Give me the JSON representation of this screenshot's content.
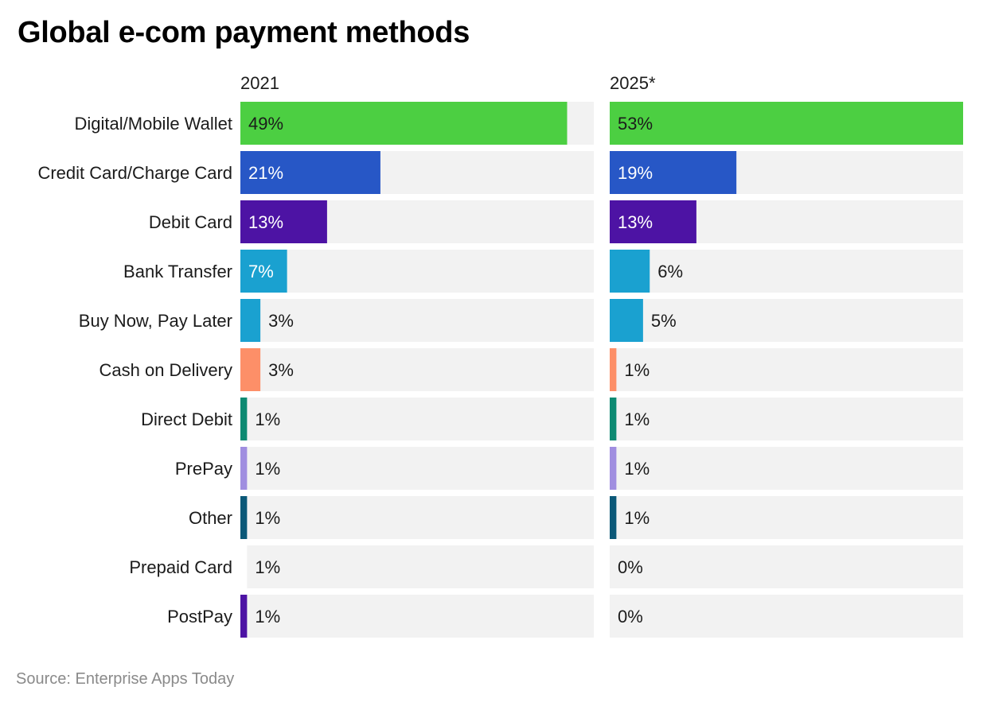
{
  "title": "Global e-com payment methods",
  "source": "Source: Enterprise Apps Today",
  "chart_data": {
    "type": "bar",
    "orientation": "horizontal",
    "layout": "small-multiples",
    "categories": [
      "Digital/Mobile Wallet",
      "Credit Card/Charge Card",
      "Debit Card",
      "Bank Transfer",
      "Buy Now, Pay Later",
      "Cash on Delivery",
      "Direct Debit",
      "PrePay",
      "Other",
      "Prepaid Card",
      "PostPay"
    ],
    "series": [
      {
        "name": "2021",
        "values": [
          49,
          21,
          13,
          7,
          3,
          3,
          1,
          1,
          1,
          1,
          1
        ],
        "labels": [
          "49%",
          "21%",
          "13%",
          "7%",
          "3%",
          "3%",
          "1%",
          "1%",
          "1%",
          "1%",
          "1%"
        ]
      },
      {
        "name": "2025*",
        "values": [
          53,
          19,
          13,
          6,
          5,
          1,
          1,
          1,
          1,
          0,
          0
        ],
        "labels": [
          "53%",
          "19%",
          "13%",
          "6%",
          "5%",
          "1%",
          "1%",
          "1%",
          "1%",
          "0%",
          "0%"
        ]
      }
    ],
    "colors": [
      "#4ccf42",
      "#2757c6",
      "#4d13a4",
      "#1aa1d0",
      "#1aa1d0",
      "#fd8f68",
      "#0d8a72",
      "#a08ee0",
      "#0b5878",
      "#ffffff",
      "#4d13a4"
    ],
    "background_bar_color": "#f2f2f2",
    "xlim": [
      0,
      53
    ],
    "value_unit": "%",
    "grid": false
  }
}
